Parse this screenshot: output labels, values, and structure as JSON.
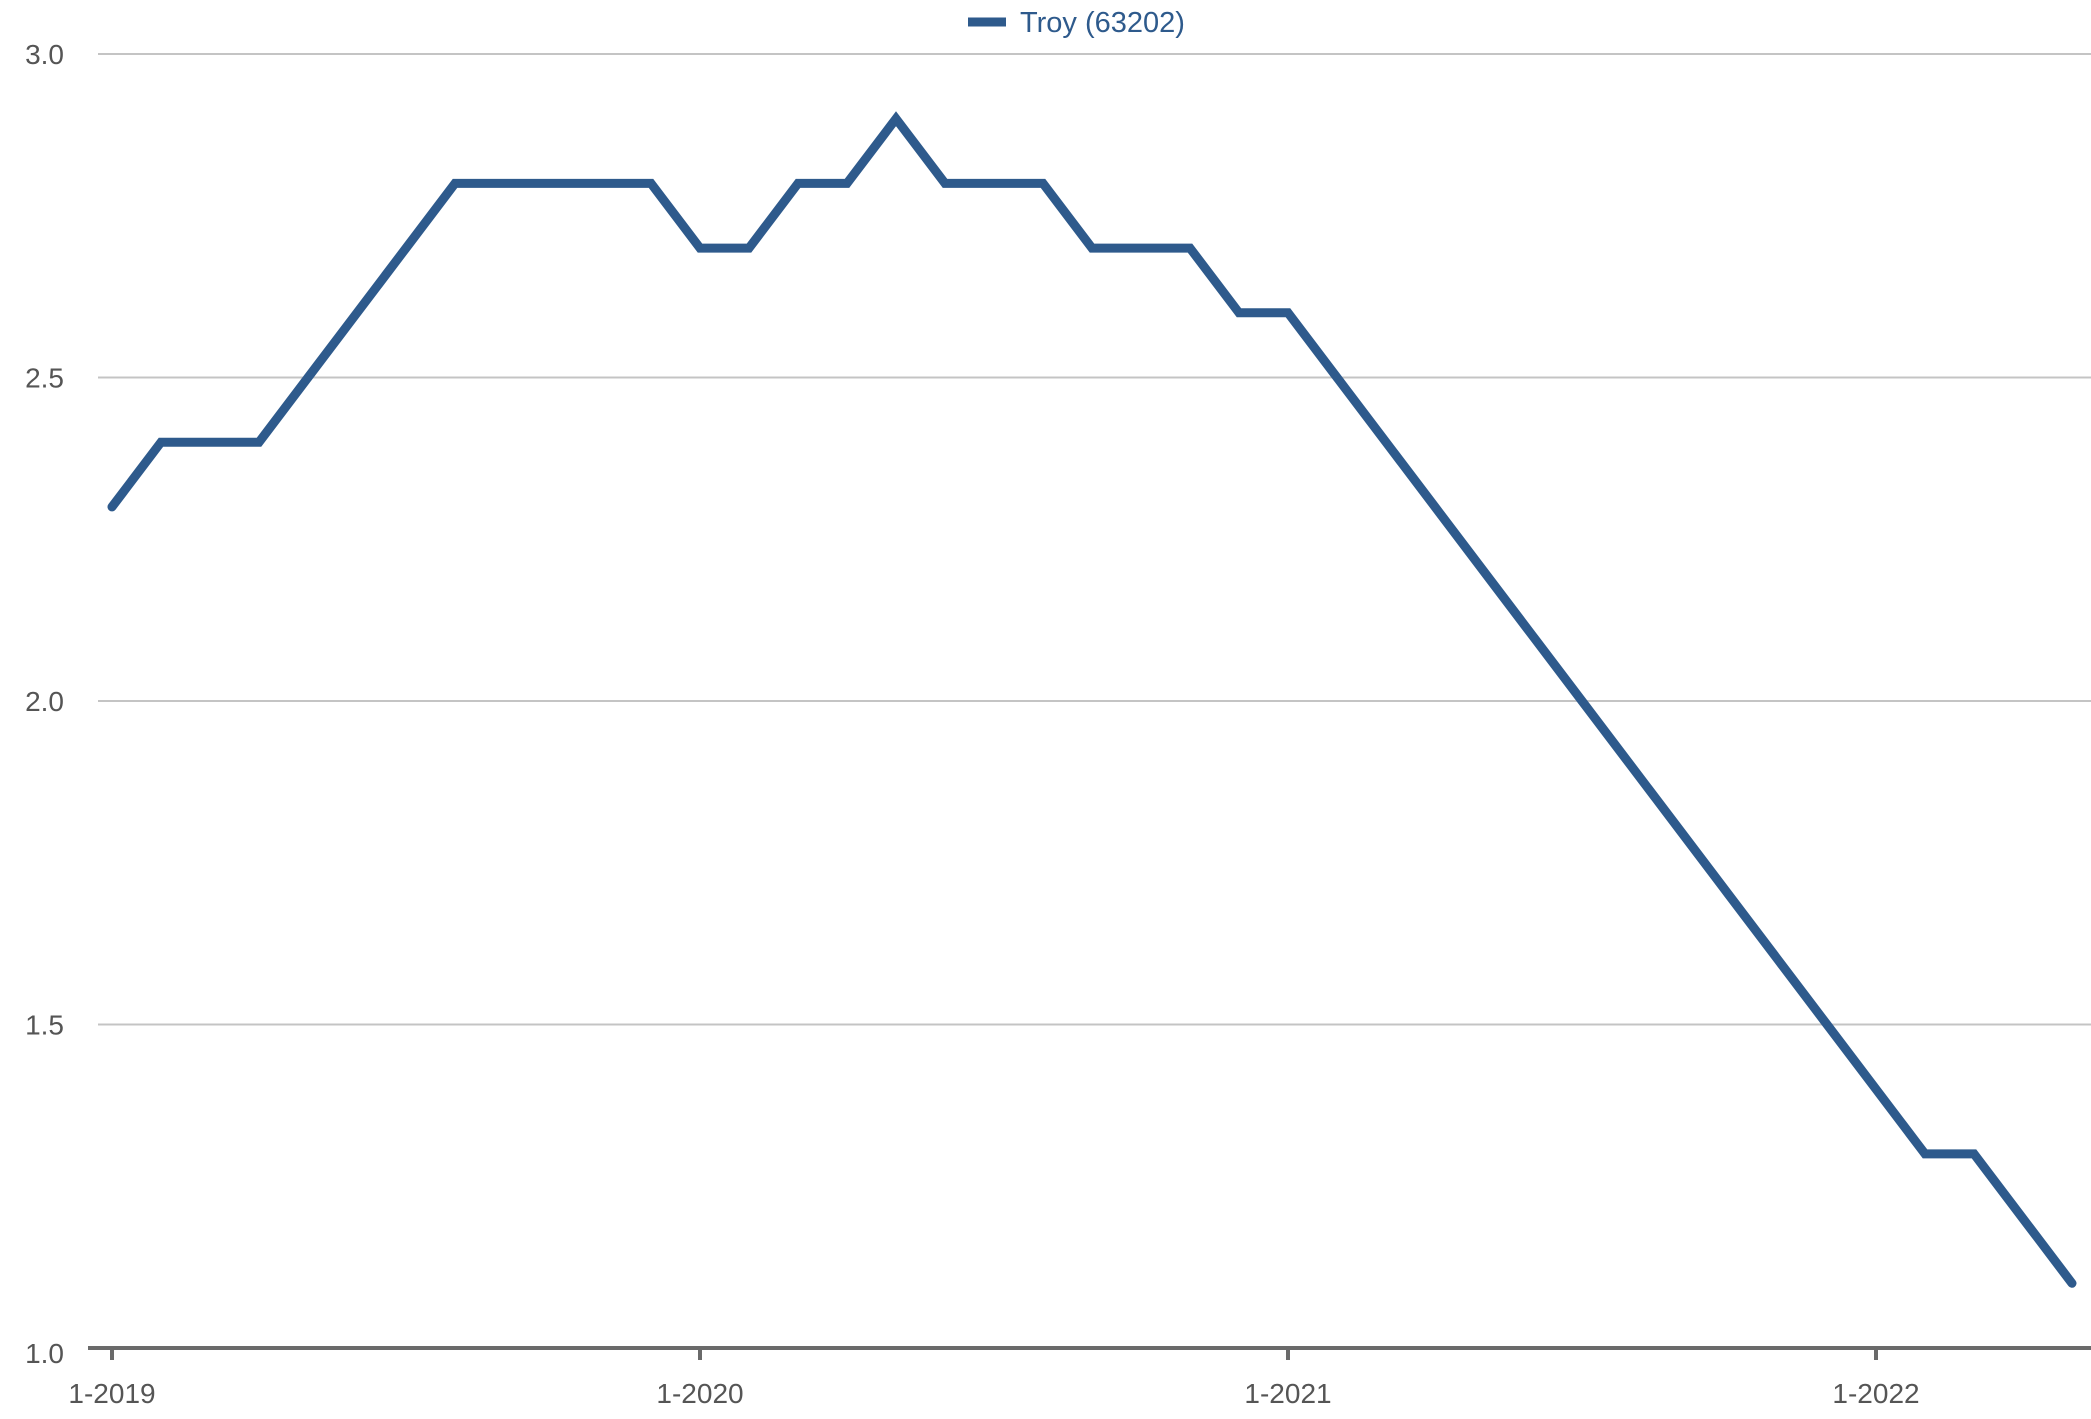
{
  "chart_data": {
    "type": "line",
    "title": "",
    "xlabel": "",
    "ylabel": "",
    "x": [
      "1-2019",
      "2-2019",
      "3-2019",
      "4-2019",
      "5-2019",
      "6-2019",
      "7-2019",
      "8-2019",
      "9-2019",
      "10-2019",
      "11-2019",
      "12-2019",
      "1-2020",
      "2-2020",
      "3-2020",
      "4-2020",
      "5-2020",
      "6-2020",
      "7-2020",
      "8-2020",
      "9-2020",
      "10-2020",
      "11-2020",
      "12-2020",
      "1-2021",
      "2-2021",
      "3-2021",
      "4-2021",
      "5-2021",
      "6-2021",
      "7-2021",
      "8-2021",
      "9-2021",
      "10-2021",
      "11-2021",
      "12-2021",
      "1-2022",
      "2-2022",
      "3-2022",
      "4-2022",
      "5-2022"
    ],
    "series": [
      {
        "name": "Troy (63202)",
        "color": "#2e5a8c",
        "values": [
          2.3,
          2.4,
          2.4,
          2.4,
          2.5,
          2.6,
          2.7,
          2.8,
          2.8,
          2.8,
          2.8,
          2.8,
          2.7,
          2.7,
          2.8,
          2.8,
          2.9,
          2.8,
          2.8,
          2.8,
          2.7,
          2.7,
          2.7,
          2.6,
          2.6,
          2.5,
          2.4,
          2.3,
          2.2,
          2.1,
          2.0,
          1.9,
          1.8,
          1.7,
          1.6,
          1.5,
          1.4,
          1.3,
          1.3,
          1.2,
          1.1
        ]
      }
    ],
    "ylim": [
      1.0,
      3.0
    ],
    "yticks": [
      "1.0",
      "1.5",
      "2.0",
      "2.5",
      "3.0"
    ],
    "xticks": [
      "1-2019",
      "1-2020",
      "1-2021",
      "1-2022"
    ],
    "legend_position": "top-center",
    "grid": true,
    "colors": {
      "grid": "#c4c4c4",
      "axis": "#6a6a6a",
      "tick_text": "#555555",
      "legend_text": "#2e5a8c"
    }
  }
}
